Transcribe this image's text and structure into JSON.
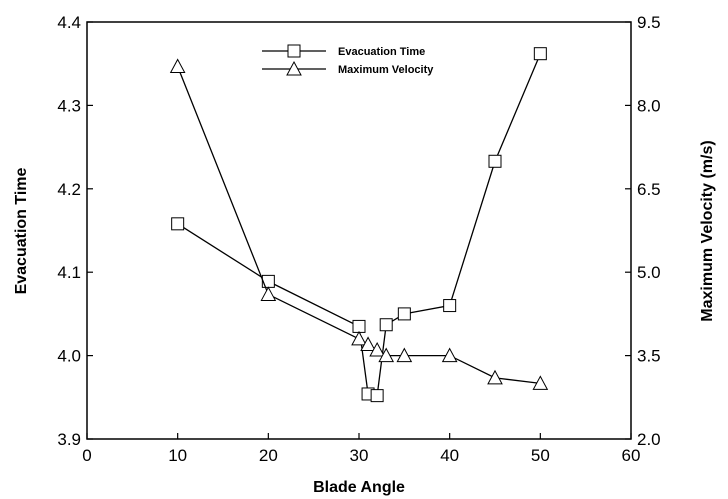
{
  "chart_data": {
    "type": "line",
    "title": "",
    "xlabel": "Blade Angle",
    "ylabel_left": "Evacuation Time",
    "ylabel_right": "Maximum Velocity (m/s)",
    "xlim": [
      0,
      60
    ],
    "ylim_left": [
      3.9,
      4.4
    ],
    "ylim_right": [
      2.0,
      9.5
    ],
    "x_ticks": [
      "0",
      "10",
      "20",
      "30",
      "40",
      "50",
      "60"
    ],
    "y_left_ticks": [
      "3.9",
      "4.0",
      "4.1",
      "4.2",
      "4.3",
      "4.4"
    ],
    "y_right_ticks": [
      "2.0",
      "3.5",
      "5.0",
      "6.5",
      "8.0",
      "9.5"
    ],
    "grid": false,
    "legend_position": "top-center",
    "series": [
      {
        "name": "Evacuation Time",
        "axis": "left",
        "marker": "square",
        "x": [
          10,
          20,
          30,
          31,
          32,
          33,
          35,
          40,
          45,
          50
        ],
        "y": [
          4.158,
          4.089,
          4.035,
          3.954,
          3.952,
          4.037,
          4.05,
          4.06,
          4.233,
          4.362
        ]
      },
      {
        "name": "Maximum Velocity",
        "axis": "right",
        "marker": "triangle",
        "x": [
          10,
          20,
          30,
          31,
          32,
          33,
          35,
          40,
          45,
          50
        ],
        "y": [
          8.7,
          4.6,
          3.8,
          3.7,
          3.6,
          3.5,
          3.5,
          3.5,
          3.1,
          3.0
        ]
      }
    ]
  }
}
